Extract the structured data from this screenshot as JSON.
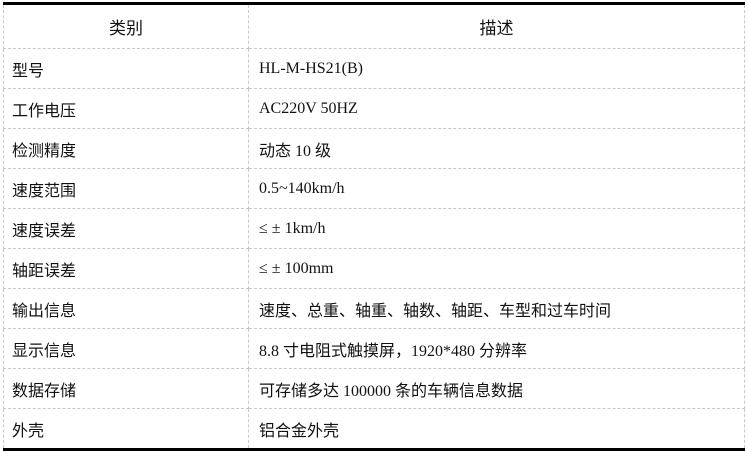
{
  "table": {
    "headers": [
      "类别",
      "描述"
    ],
    "rows": [
      {
        "category": "型号",
        "description": "HL-M-HS21(B)"
      },
      {
        "category": "工作电压",
        "description": "AC220V 50HZ"
      },
      {
        "category": "检测精度",
        "description": "动态 10 级"
      },
      {
        "category": "速度范围",
        "description": "0.5~140km/h"
      },
      {
        "category": "速度误差",
        "description": "≤ ± 1km/h"
      },
      {
        "category": "轴距误差",
        "description": "≤ ± 100mm"
      },
      {
        "category": "输出信息",
        "description": "速度、总重、轴重、轴数、轴距、车型和过车时间"
      },
      {
        "category": "显示信息",
        "description": "8.8 寸电阻式触摸屏，1920*480 分辨率"
      },
      {
        "category": "数据存储",
        "description": "可存储多达 100000 条的车辆信息数据"
      },
      {
        "category": "外壳",
        "description": "铝合金外壳"
      }
    ]
  }
}
